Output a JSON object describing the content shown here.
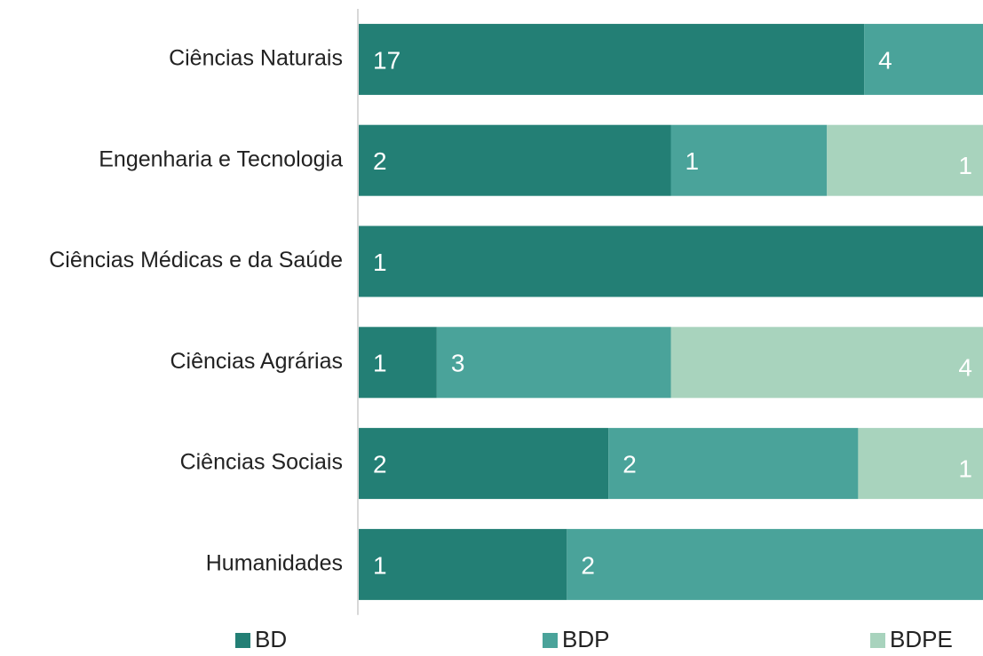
{
  "chart_data": {
    "type": "bar100h",
    "categories": [
      "Ciências Naturais",
      "Engenharia e Tecnologia",
      "Ciências Médicas e da Saúde",
      "Ciências Agrárias",
      "Ciências Sociais",
      "Humanidades"
    ],
    "series": [
      {
        "name": "BD",
        "color": "#237f75",
        "values": [
          17,
          2,
          1,
          1,
          2,
          1
        ]
      },
      {
        "name": "BDP",
        "color": "#4aa39a",
        "values": [
          4,
          1,
          null,
          3,
          2,
          2
        ]
      },
      {
        "name": "BDPE",
        "color": "#a8d3bd",
        "values": [
          null,
          1,
          null,
          4,
          1,
          null
        ]
      }
    ],
    "legend": "bottom"
  }
}
